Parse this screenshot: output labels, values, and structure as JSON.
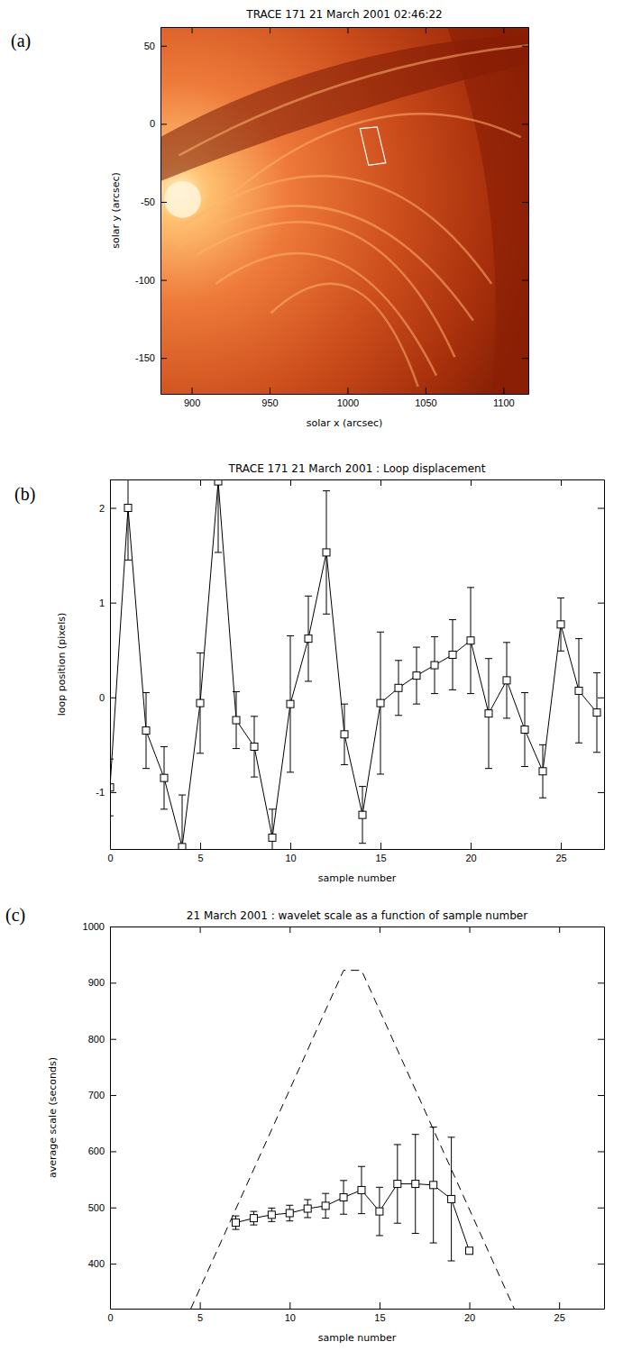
{
  "chart_data": [
    {
      "type": "image",
      "panel": "(a)",
      "title": "TRACE 171 21 March 2001 02:46:22",
      "x_label": "solar x (arcsec)",
      "y_label": "solar y (arcsec)",
      "xlim": [
        880,
        1116
      ],
      "ylim": [
        -173,
        62
      ],
      "xticks": [
        900,
        950,
        1000,
        1050,
        1100
      ],
      "yticks": [
        -150,
        -100,
        -50,
        0,
        50
      ],
      "region": {
        "x": [
          1008,
          1019,
          1024.5,
          1013.5
        ],
        "y": [
          -3,
          -2,
          -25,
          -26.5
        ],
        "color": "#ffffff"
      }
    },
    {
      "type": "line",
      "panel": "(b)",
      "title": "TRACE 171 21 March 2001 : Loop displacement",
      "x_label": "sample number",
      "y_label": "loop position (pixels)",
      "xlim": [
        0,
        27.4
      ],
      "ylim": [
        -1.6,
        2.3
      ],
      "xticks": [
        0,
        5,
        10,
        15,
        20,
        25
      ],
      "yticks": [
        -1,
        0,
        1,
        2
      ],
      "series": [
        {
          "color": "#000000",
          "marker": "square",
          "line_style": "solid",
          "x": [
            0,
            1,
            2,
            3,
            4,
            5,
            6,
            7,
            8,
            9,
            10,
            11,
            12,
            13,
            14,
            15,
            16,
            17,
            18,
            19,
            20,
            21,
            22,
            23,
            24,
            25,
            26,
            27
          ],
          "values": [
            -0.95,
            2.0,
            -0.35,
            -0.85,
            -1.58,
            -0.06,
            2.28,
            -0.24,
            -0.52,
            -1.48,
            -0.07,
            0.62,
            1.53,
            -0.39,
            -1.24,
            -0.06,
            0.1,
            0.23,
            0.34,
            0.45,
            0.6,
            -0.17,
            0.18,
            -0.34,
            -0.78,
            0.77,
            0.07,
            -0.16
          ],
          "errors": [
            0.3,
            0.55,
            0.4,
            0.33,
            0.55,
            0.53,
            0.75,
            0.3,
            0.32,
            0.3,
            0.72,
            0.45,
            0.65,
            0.32,
            0.3,
            0.75,
            0.29,
            0.3,
            0.3,
            0.37,
            0.56,
            0.58,
            0.4,
            0.39,
            0.28,
            0.28,
            0.55,
            0.42
          ]
        }
      ]
    },
    {
      "type": "line",
      "panel": "(c)",
      "title": "21 March 2001 : wavelet scale as a function of sample number",
      "x_label": "sample number",
      "y_label": "average scale (seconds)",
      "xlim": [
        0,
        27.5
      ],
      "ylim": [
        320,
        1000
      ],
      "xticks": [
        0,
        5,
        10,
        15,
        20,
        25
      ],
      "yticks": [
        400,
        500,
        600,
        700,
        800,
        900,
        1000
      ],
      "series": [
        {
          "color": "#000000",
          "marker": "square",
          "line_style": "solid",
          "x": [
            7,
            8,
            9,
            10,
            11,
            12,
            13,
            14,
            15,
            16,
            17,
            18,
            19,
            20
          ],
          "values": [
            473,
            481,
            487,
            490,
            498,
            503,
            518,
            531,
            493,
            542,
            542,
            540,
            515,
            423
          ],
          "errors": [
            12,
            12,
            12,
            14,
            16,
            22,
            30,
            42,
            43,
            70,
            88,
            103,
            110,
            5
          ]
        },
        {
          "color": "#000000",
          "line_style": "dashed",
          "x": [
            4.5,
            13,
            14,
            22.5
          ],
          "values": [
            320,
            922,
            922,
            320
          ]
        }
      ]
    }
  ]
}
